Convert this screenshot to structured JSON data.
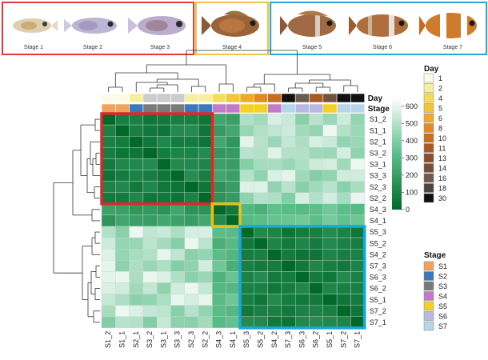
{
  "panel": {
    "groups": [
      {
        "label_color": "#e03a3a"
      },
      {
        "label_color": "#e8c44a"
      },
      {
        "label_color": "#2aa8d8"
      }
    ],
    "stage_labels": [
      "Stage 1",
      "Stage 2",
      "Stage 3",
      "Stage 4",
      "Stage 5",
      "Stage 6",
      "Stage 7"
    ]
  },
  "chart_data": {
    "type": "heatmap",
    "row_labels": [
      "S1_2",
      "S1_1",
      "S2_1",
      "S3_2",
      "S3_1",
      "S3_3",
      "S2_3",
      "S2_2",
      "S4_3",
      "S4_1",
      "S5_3",
      "S5_2",
      "S4_2",
      "S7_3",
      "S6_3",
      "S6_2",
      "S5_1",
      "S7_2",
      "S7_1"
    ],
    "col_labels": [
      "S1_2",
      "S1_1",
      "S2_1",
      "S3_2",
      "S3_1",
      "S3_3",
      "S2_3",
      "S2_2",
      "S4_3",
      "S4_1",
      "S5_3",
      "S5_2",
      "S4_2",
      "S7_3",
      "S6_3",
      "S6_2",
      "S5_1",
      "S7_2",
      "S7_1"
    ],
    "annotation_labels": {
      "day": "Day",
      "stage": "Stage"
    },
    "col_day": [
      "1",
      "1",
      "2",
      "3",
      "3",
      "3",
      "2",
      "2",
      "4",
      "5",
      "6",
      "8",
      "10",
      "30",
      "16",
      "11",
      "14",
      "30",
      "30"
    ],
    "col_stage": [
      "S1",
      "S1",
      "S2",
      "S3",
      "S3",
      "S3",
      "S2",
      "S2",
      "S4",
      "S4",
      "S5",
      "S5",
      "S4",
      "S7",
      "S6",
      "S6",
      "S5",
      "S7",
      "S7"
    ],
    "colorbar": {
      "ticks": [
        0,
        100,
        200,
        300,
        400,
        500,
        600
      ],
      "low_color": "#00692a",
      "high_color": "#ffffff",
      "range": [
        0,
        650
      ]
    },
    "day_legend": {
      "title": "Day",
      "items": [
        {
          "label": "1",
          "color": "#fdfbe6"
        },
        {
          "label": "2",
          "color": "#f8eea0"
        },
        {
          "label": "4",
          "color": "#f4dd5a"
        },
        {
          "label": "5",
          "color": "#f2c53a"
        },
        {
          "label": "6",
          "color": "#f0aa2a"
        },
        {
          "label": "8",
          "color": "#e28a22"
        },
        {
          "label": "10",
          "color": "#c96e1e"
        },
        {
          "label": "11",
          "color": "#a85a22"
        },
        {
          "label": "13",
          "color": "#8c4e2a"
        },
        {
          "label": "14",
          "color": "#76513a"
        },
        {
          "label": "16",
          "color": "#6c5c4e"
        },
        {
          "label": "18",
          "color": "#4c4540"
        },
        {
          "label": "30",
          "color": "#111111"
        }
      ]
    },
    "stage_legend": {
      "title": "Stage",
      "items": [
        {
          "label": "S1",
          "color": "#f2a25c"
        },
        {
          "label": "S2",
          "color": "#3a78b8"
        },
        {
          "label": "S3",
          "color": "#7a7a7a"
        },
        {
          "label": "S4",
          "color": "#c07ac8"
        },
        {
          "label": "S5",
          "color": "#f2d028"
        },
        {
          "label": "S6",
          "color": "#b8b8e0"
        },
        {
          "label": "S7",
          "color": "#b6d4ea"
        }
      ]
    },
    "highlight_boxes": [
      {
        "from": "S1_2",
        "to": "S2_2",
        "color": "#d82a2a"
      },
      {
        "from": "S4_3",
        "to": "S4_1",
        "color": "#e8c020"
      },
      {
        "from": "S5_3",
        "to": "S7_1",
        "color": "#1aa6d8"
      }
    ]
  }
}
